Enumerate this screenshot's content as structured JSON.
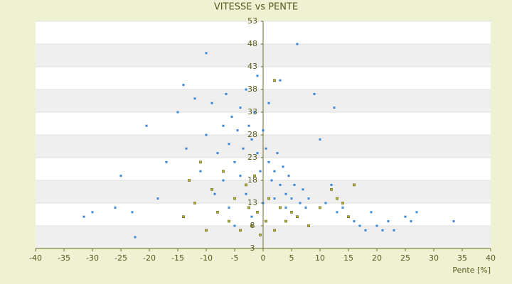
{
  "chart_data": {
    "type": "scatter",
    "title": "VITESSE vs PENTE",
    "x_label": "Pente [%]",
    "xlim": [
      -40,
      40
    ],
    "xticks": [
      -40,
      -35,
      -30,
      -25,
      -20,
      -15,
      -10,
      -5,
      0,
      5,
      10,
      15,
      20,
      25,
      30,
      35,
      40
    ],
    "ylim": [
      3,
      53
    ],
    "yticks": [
      3,
      8,
      13,
      18,
      23,
      28,
      33,
      38,
      43,
      48,
      53
    ],
    "grid": true,
    "series": [
      {
        "color": "#3a86d6",
        "x": [
          -31.5,
          -30,
          -26,
          -25,
          -23,
          -22.5,
          -20.5,
          -18.5,
          -17,
          -15,
          -14,
          -13.5,
          -12,
          -11,
          -10,
          -10,
          -9,
          -8.5,
          -8,
          -7,
          -7,
          -6.5,
          -6,
          -6,
          -5.5,
          -5,
          -5,
          -4.5,
          -4,
          -4,
          -3.5,
          -3,
          -3,
          -2.5,
          -2,
          -2,
          -1.5,
          -1,
          -1,
          -0.5,
          0,
          0,
          0.5,
          1,
          1,
          1.5,
          2,
          2,
          2.5,
          3,
          3,
          3.5,
          4,
          4,
          4.5,
          5,
          5.5,
          6,
          6.5,
          7,
          7.5,
          8,
          9,
          10,
          11,
          12,
          12.5,
          13,
          14,
          15,
          16,
          17,
          18,
          19,
          20,
          21,
          22,
          23,
          25,
          26,
          27,
          33.5
        ],
        "y": [
          10,
          11,
          12,
          19,
          11,
          5.5,
          30,
          14,
          22,
          33,
          39,
          25,
          36,
          20,
          46,
          28,
          35,
          15,
          24,
          30,
          18,
          37,
          26,
          12,
          32,
          22,
          8,
          29,
          34,
          19,
          25,
          38,
          15,
          30,
          27,
          10,
          33,
          41,
          24,
          20,
          29,
          13,
          25,
          22,
          35,
          18,
          20,
          14,
          24,
          17,
          40,
          21,
          15,
          12,
          19,
          14,
          17,
          48,
          13,
          16,
          12,
          14,
          37,
          27,
          13,
          17,
          34,
          11,
          12,
          10,
          9,
          8,
          7,
          11,
          8,
          7,
          9,
          7,
          10,
          9,
          11,
          9
        ]
      },
      {
        "color": "#b8b82a",
        "x": [
          -14,
          -13,
          -12,
          -11,
          -10,
          -9,
          -8,
          -7,
          -6,
          -5,
          -4,
          -3,
          -2.5,
          -2,
          -1.5,
          -1,
          -0.5,
          0.5,
          1,
          2,
          2,
          3,
          4,
          5,
          6,
          8,
          10,
          12,
          13,
          14,
          15,
          16
        ],
        "y": [
          10,
          18,
          13,
          22,
          7,
          16,
          11,
          20,
          9,
          14,
          7,
          17,
          12,
          8,
          19,
          11,
          6,
          9,
          14,
          40,
          7,
          12,
          9,
          11,
          10,
          8,
          12,
          16,
          14,
          13,
          10,
          17
        ]
      }
    ]
  }
}
